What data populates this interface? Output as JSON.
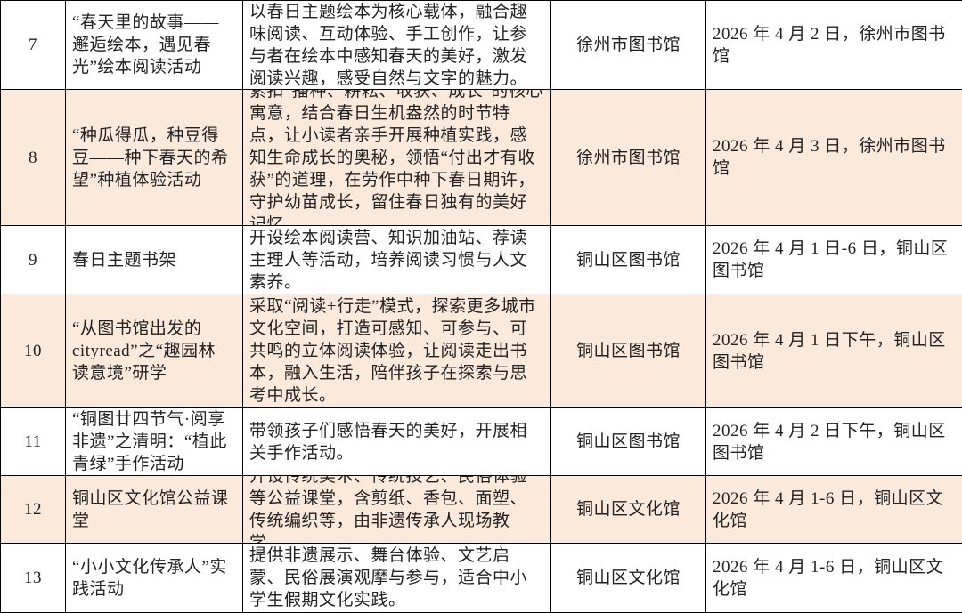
{
  "table": {
    "rows": [
      [
        "7",
        "“春天里的故事——邂逅绘本，遇见春光”绘本阅读活动",
        "以春日主题绘本为核心载体，融合趣味阅读、互动体验、手工创作，让参与者在绘本中感知春天的美好，激发阅读兴趣，感受自然与文字的魅力。",
        "徐州市图书馆",
        "2026 年 4 月 2 日，徐州市图书馆"
      ],
      [
        "8",
        "“种瓜得瓜，种豆得豆——种下春天的希望”种植体验活动",
        "紧扣“播种、耕耘、收获、成长”的核心寓意，结合春日生机盎然的时节特点，让小读者亲手开展种植实践，感知生命成长的奥秘，领悟“付出才有收获”的道理，在劳作中种下春日期许，守护幼苗成长，留住春日独有的美好记忆。",
        "徐州市图书馆",
        "2026 年 4 月 3 日，徐州市图书馆"
      ],
      [
        "9",
        "春日主题书架",
        "开设绘本阅读营、知识加油站、荐读主理人等活动，培养阅读习惯与人文素养。",
        "铜山区图书馆",
        "2026 年 4 月 1 日-6 日，铜山区图书馆"
      ],
      [
        "10",
        "“从图书馆出发的cityread”之“趣园林 读意境”研学",
        "采取“阅读+行走”模式，探索更多城市文化空间，打造可感知、可参与、可共鸣的立体阅读体验，让阅读走出书本，融入生活，陪伴孩子在探索与思考中成长。",
        "铜山区图书馆",
        "2026 年 4 月 1 日下午，铜山区图书馆"
      ],
      [
        "11",
        "“铜图廿四节气·阅享非遗”之清明：“植此青绿”手作活动",
        "带领孩子们感悟春天的美好，开展相关手作活动。",
        "铜山区图书馆",
        "2026 年 4 月 2 日下午，铜山区图书馆"
      ],
      [
        "12",
        "铜山区文化馆公益课堂",
        "开设传统美术、传统技艺、民俗体验等公益课堂，含剪纸、香包、面塑、传统编织等，由非遗传承人现场教学。",
        "铜山区文化馆",
        "2026 年 4 月 1-6 日，铜山区文化馆"
      ],
      [
        "13",
        "“小小文化传承人”实践活动",
        "提供非遗展示、舞台体验、文艺启蒙、民俗展演观摩与参与，适合中小学生假期文化实践。",
        "铜山区文化馆",
        "2026 年 4 月 1-6 日，铜山区文化馆"
      ]
    ]
  }
}
